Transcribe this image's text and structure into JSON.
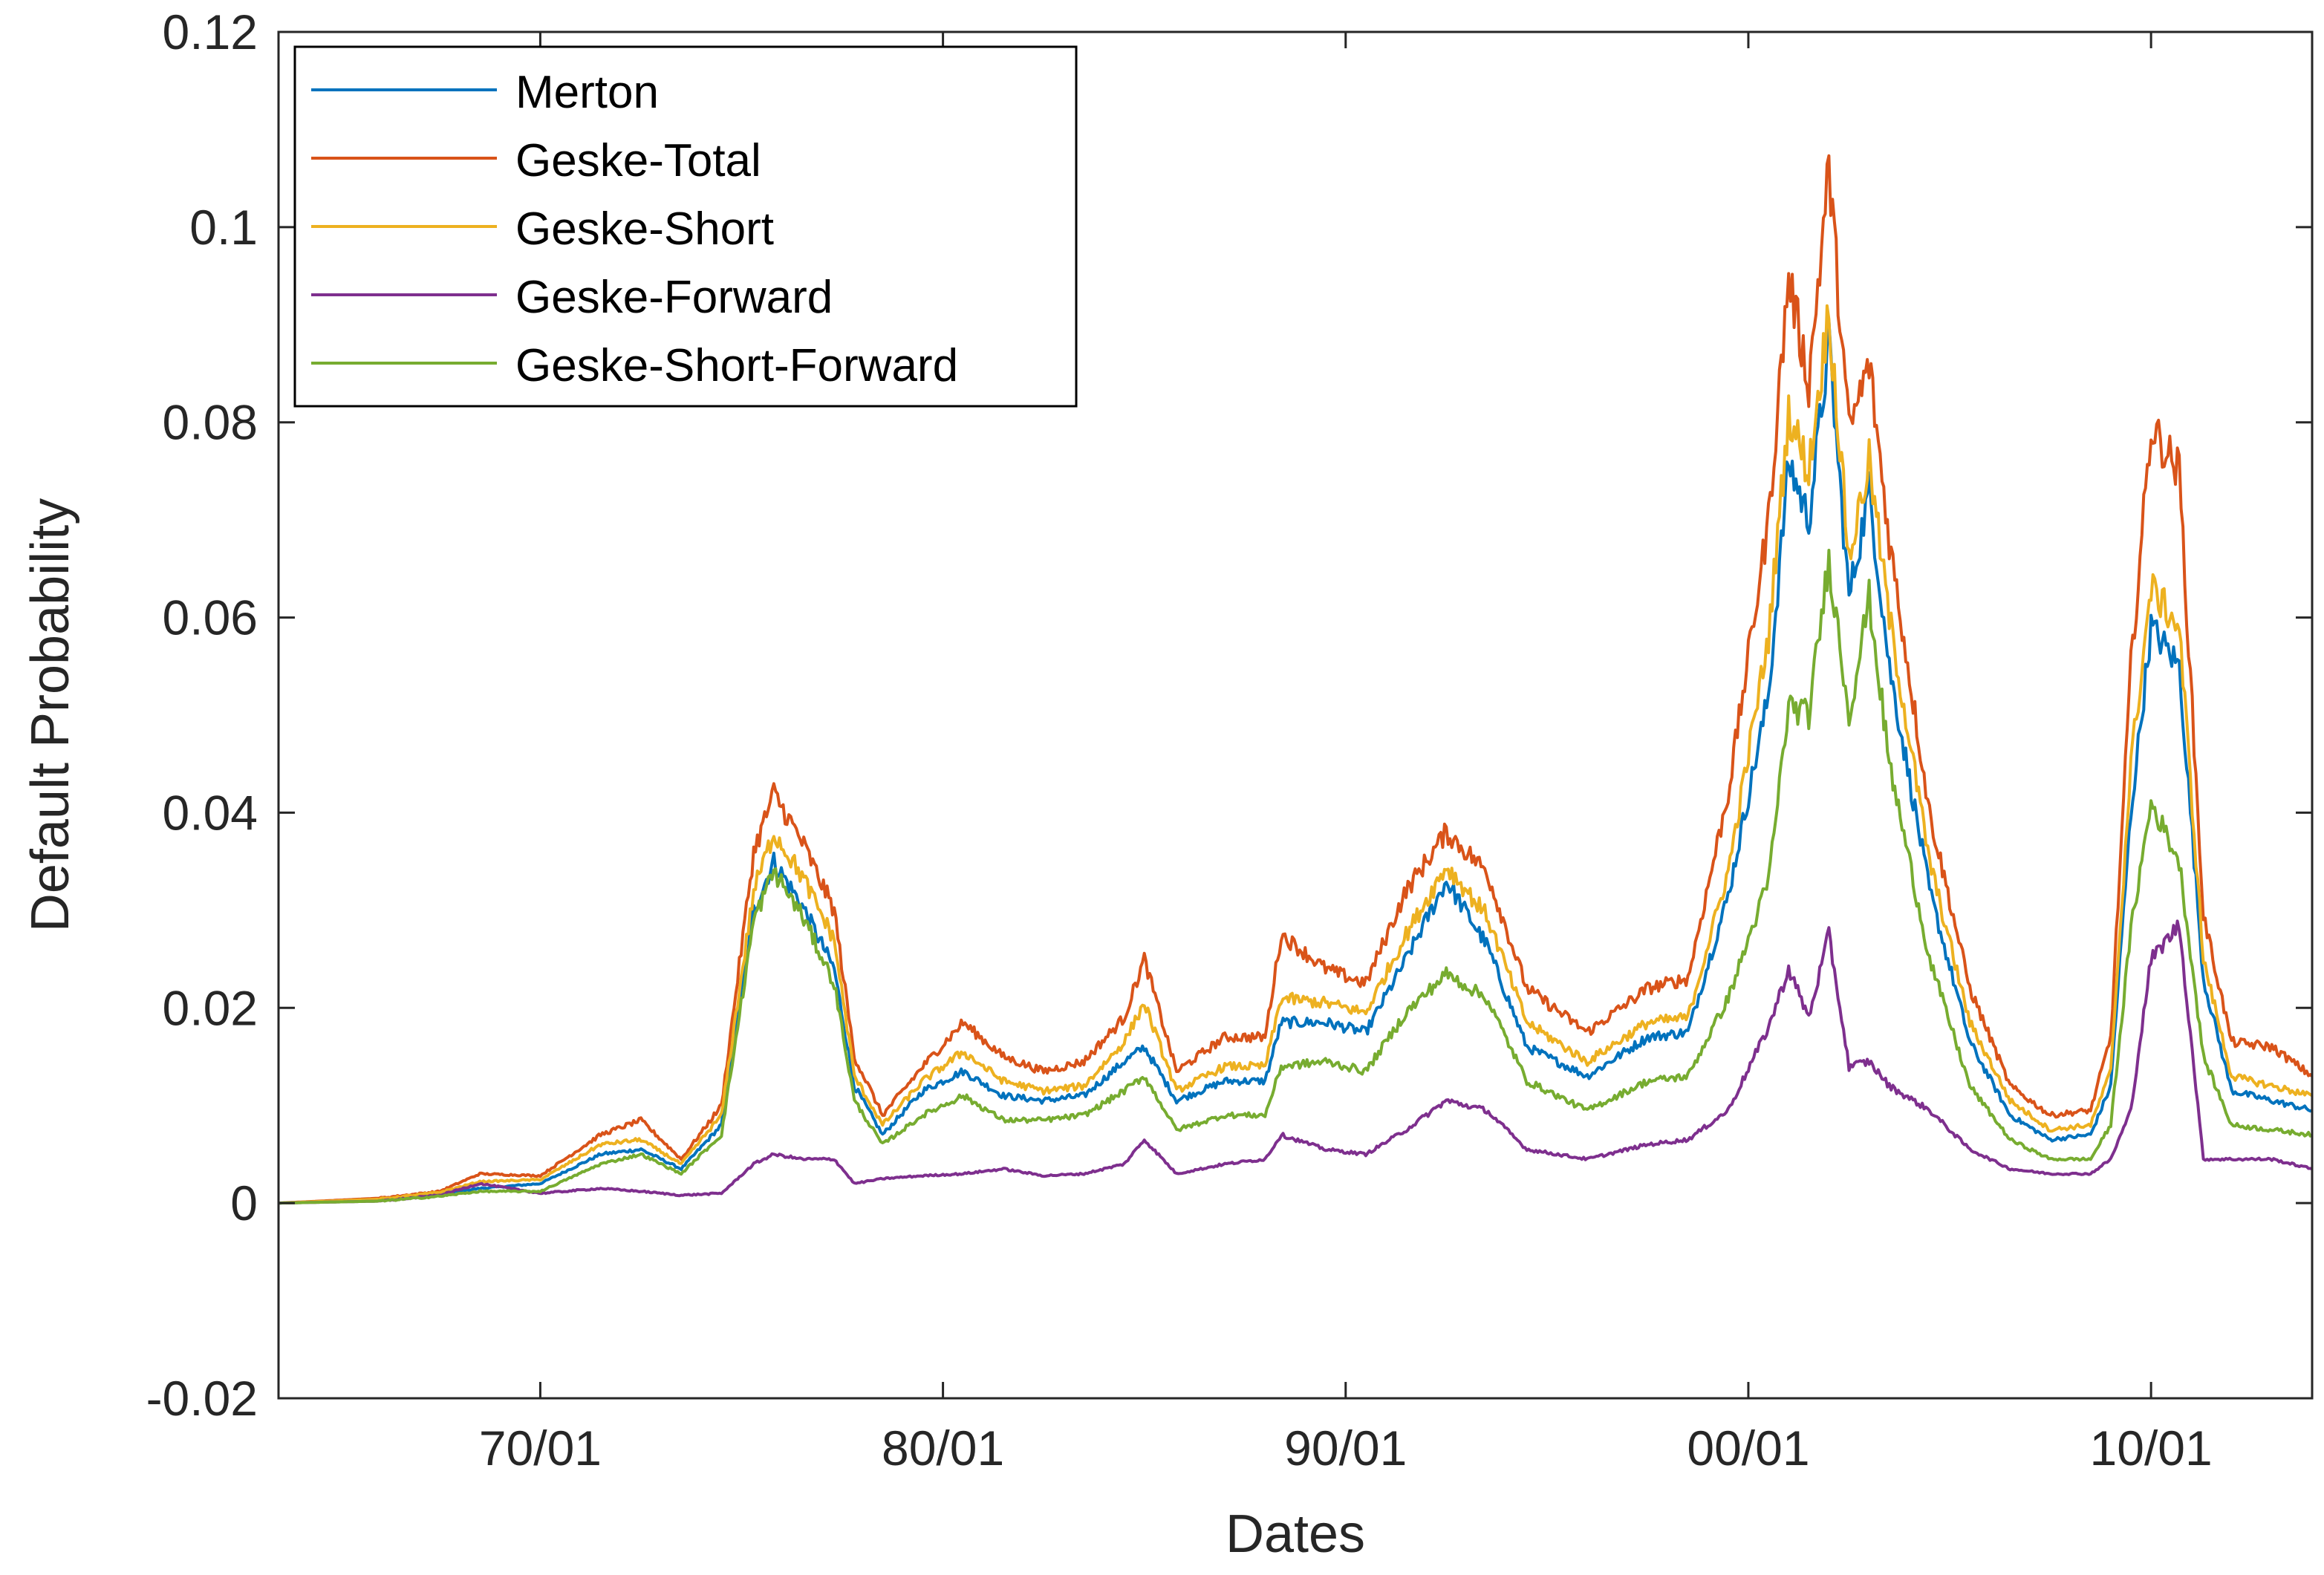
{
  "chart_data": {
    "type": "line",
    "title": "",
    "xlabel": "Dates",
    "ylabel": "Default Probability",
    "xlim": [
      1963.5,
      2014.0
    ],
    "ylim": [
      -0.02,
      0.12
    ],
    "yticks": [
      -0.02,
      0,
      0.02,
      0.04,
      0.06,
      0.08,
      0.1,
      0.12
    ],
    "yticklabels": [
      "-0.02",
      "0",
      "0.02",
      "0.04",
      "0.06",
      "0.08",
      "0.1",
      "0.12"
    ],
    "xticks": [
      1970,
      1980,
      1990,
      2000,
      2010
    ],
    "xticklabels": [
      "70/01",
      "80/01",
      "90/01",
      "00/01",
      "10/01"
    ],
    "grid": false,
    "legend_position": "top-left",
    "x": [
      1963.5,
      1966,
      1967.5,
      1968.5,
      1970,
      1971.5,
      1972.5,
      1973.5,
      1974.5,
      1975.3,
      1975.8,
      1976.5,
      1977.3,
      1977.8,
      1978.5,
      1979.5,
      1980.5,
      1981.5,
      1982.5,
      1983.5,
      1984.5,
      1985,
      1985.8,
      1987,
      1988,
      1988.4,
      1989.5,
      1990.5,
      1991.5,
      1992.5,
      1993.5,
      1994.5,
      1996,
      1997.5,
      1998.5,
      1999.5,
      2000.5,
      2001,
      2001.5,
      2002,
      2002.5,
      2003,
      2003.5,
      2004.5,
      2005.5,
      2006.5,
      2007.5,
      2008.5,
      2009,
      2009.5,
      2010,
      2010.7,
      2011.3,
      2012,
      2013,
      2014
    ],
    "series": [
      {
        "name": "Merton",
        "color": "#0072BD",
        "values": [
          0,
          0.0003,
          0.001,
          0.0015,
          0.002,
          0.005,
          0.0055,
          0.0035,
          0.008,
          0.03,
          0.035,
          0.0305,
          0.024,
          0.012,
          0.007,
          0.0115,
          0.0135,
          0.011,
          0.0105,
          0.011,
          0.0145,
          0.016,
          0.0105,
          0.0125,
          0.0125,
          0.0185,
          0.0185,
          0.0175,
          0.025,
          0.033,
          0.0265,
          0.016,
          0.013,
          0.017,
          0.0175,
          0.0315,
          0.052,
          0.076,
          0.07,
          0.088,
          0.062,
          0.073,
          0.055,
          0.032,
          0.0165,
          0.009,
          0.0065,
          0.007,
          0.012,
          0.04,
          0.059,
          0.055,
          0.023,
          0.0115,
          0.0105,
          0.0095
        ]
      },
      {
        "name": "Geske-Total",
        "color": "#D95319",
        "values": [
          0,
          0.0005,
          0.0012,
          0.003,
          0.0028,
          0.007,
          0.0085,
          0.0045,
          0.01,
          0.036,
          0.042,
          0.037,
          0.03,
          0.015,
          0.009,
          0.014,
          0.0185,
          0.015,
          0.0135,
          0.0145,
          0.019,
          0.025,
          0.0135,
          0.017,
          0.017,
          0.0275,
          0.024,
          0.0225,
          0.032,
          0.038,
          0.034,
          0.022,
          0.0175,
          0.022,
          0.023,
          0.042,
          0.07,
          0.095,
          0.084,
          0.106,
          0.079,
          0.086,
          0.068,
          0.04,
          0.022,
          0.012,
          0.009,
          0.0095,
          0.017,
          0.055,
          0.0795,
          0.075,
          0.0295,
          0.0165,
          0.016,
          0.013
        ]
      },
      {
        "name": "Geske-Short",
        "color": "#EDB120",
        "values": [
          0,
          0.0004,
          0.0011,
          0.0022,
          0.0024,
          0.006,
          0.0065,
          0.004,
          0.009,
          0.032,
          0.038,
          0.0335,
          0.027,
          0.013,
          0.008,
          0.0125,
          0.0155,
          0.0125,
          0.0115,
          0.012,
          0.0165,
          0.0205,
          0.0115,
          0.014,
          0.014,
          0.021,
          0.0205,
          0.0195,
          0.0275,
          0.0345,
          0.0295,
          0.0185,
          0.0145,
          0.0185,
          0.019,
          0.034,
          0.058,
          0.081,
          0.075,
          0.0915,
          0.066,
          0.076,
          0.06,
          0.035,
          0.0185,
          0.0105,
          0.0075,
          0.008,
          0.0135,
          0.045,
          0.063,
          0.059,
          0.025,
          0.013,
          0.012,
          0.011
        ]
      },
      {
        "name": "Geske-Forward",
        "color": "#7E2F8E",
        "values": [
          0,
          0.0002,
          0.0008,
          0.002,
          0.001,
          0.0015,
          0.0012,
          0.0008,
          0.001,
          0.004,
          0.005,
          0.0045,
          0.0045,
          0.002,
          0.0025,
          0.0028,
          0.003,
          0.0035,
          0.0028,
          0.003,
          0.004,
          0.0065,
          0.003,
          0.004,
          0.0045,
          0.007,
          0.0055,
          0.005,
          0.0075,
          0.0105,
          0.0095,
          0.0055,
          0.0045,
          0.006,
          0.0065,
          0.0095,
          0.018,
          0.024,
          0.019,
          0.0275,
          0.014,
          0.0145,
          0.012,
          0.0095,
          0.0055,
          0.0035,
          0.003,
          0.003,
          0.0045,
          0.0095,
          0.025,
          0.0285,
          0.0045,
          0.0045,
          0.0045,
          0.0035
        ]
      },
      {
        "name": "Geske-Short-Forward",
        "color": "#77AC30",
        "values": [
          0,
          0.0002,
          0.0007,
          0.0012,
          0.0012,
          0.004,
          0.005,
          0.003,
          0.007,
          0.029,
          0.034,
          0.0295,
          0.0225,
          0.0105,
          0.006,
          0.009,
          0.011,
          0.0085,
          0.0085,
          0.009,
          0.0115,
          0.013,
          0.0075,
          0.009,
          0.009,
          0.014,
          0.0145,
          0.0135,
          0.0195,
          0.0235,
          0.021,
          0.0125,
          0.0095,
          0.0125,
          0.013,
          0.021,
          0.033,
          0.051,
          0.05,
          0.066,
          0.05,
          0.062,
          0.045,
          0.025,
          0.012,
          0.0065,
          0.0045,
          0.0045,
          0.008,
          0.028,
          0.041,
          0.035,
          0.015,
          0.008,
          0.0075,
          0.007
        ]
      }
    ]
  }
}
